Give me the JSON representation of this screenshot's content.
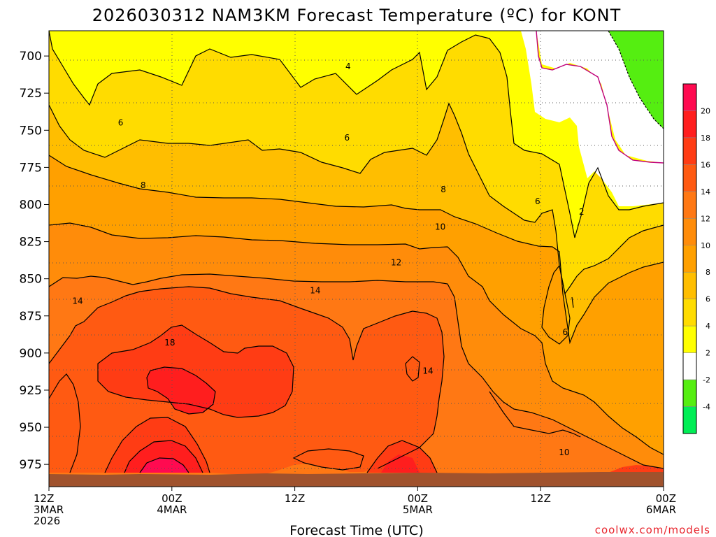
{
  "chart_data": {
    "type": "heatmap",
    "title": "2026030312 NAM3KM Forecast Temperature (ºC) for KONT",
    "xlabel": "Forecast Time (UTC)",
    "ylabel": "",
    "x_ticks": [
      {
        "hour": 0,
        "lines": [
          "12Z",
          "3MAR",
          "2026"
        ]
      },
      {
        "hour": 12,
        "lines": [
          "00Z",
          "4MAR"
        ]
      },
      {
        "hour": 24,
        "lines": [
          "12Z"
        ]
      },
      {
        "hour": 36,
        "lines": [
          "00Z",
          "5MAR"
        ]
      },
      {
        "hour": 48,
        "lines": [
          "12Z"
        ]
      },
      {
        "hour": 60,
        "lines": [
          "00Z",
          "6MAR"
        ]
      }
    ],
    "xlim": [
      0,
      60
    ],
    "y_ticks": [
      700,
      725,
      750,
      775,
      800,
      825,
      850,
      875,
      900,
      925,
      950,
      975
    ],
    "ylim": [
      683,
      990
    ],
    "ground_level_hpa": 978,
    "colorbar": {
      "ticks": [
        20,
        18,
        16,
        14,
        12,
        10,
        8,
        6,
        4,
        2,
        -2,
        -4
      ],
      "bands": [
        {
          "from": 20,
          "to": 22,
          "color": "#ff0a50"
        },
        {
          "from": 18,
          "to": 20,
          "color": "#ff1e1e"
        },
        {
          "from": 16,
          "to": 18,
          "color": "#ff3c14"
        },
        {
          "from": 14,
          "to": 16,
          "color": "#ff5a12"
        },
        {
          "from": 12,
          "to": 14,
          "color": "#ff7814"
        },
        {
          "from": 10,
          "to": 12,
          "color": "#ff8c0a"
        },
        {
          "from": 8,
          "to": 10,
          "color": "#ffa000"
        },
        {
          "from": 6,
          "to": 8,
          "color": "#ffbe00"
        },
        {
          "from": 4,
          "to": 6,
          "color": "#ffdc00"
        },
        {
          "from": 2,
          "to": 4,
          "color": "#ffff00"
        },
        {
          "from": -2,
          "to": 2,
          "color": "#ffffff"
        },
        {
          "from": -4,
          "to": -2,
          "color": "#55ee11"
        },
        {
          "from": -6,
          "to": -4,
          "color": "#00ee55"
        }
      ]
    },
    "contour_labels": [
      {
        "value": "4",
        "hour": 29.2,
        "hpa": 707
      },
      {
        "value": "6",
        "hour": 7.0,
        "hpa": 745
      },
      {
        "value": "6",
        "hour": 29.1,
        "hpa": 755
      },
      {
        "value": "8",
        "hour": 9.2,
        "hpa": 787
      },
      {
        "value": "8",
        "hour": 38.5,
        "hpa": 790
      },
      {
        "value": "6",
        "hour": 47.7,
        "hpa": 798
      },
      {
        "value": "2",
        "hour": 52.0,
        "hpa": 805
      },
      {
        "value": "10",
        "hour": 38.2,
        "hpa": 815
      },
      {
        "value": "12",
        "hour": 33.9,
        "hpa": 839
      },
      {
        "value": "14",
        "hour": 2.8,
        "hpa": 865
      },
      {
        "value": "14",
        "hour": 26.0,
        "hpa": 858
      },
      {
        "value": "18",
        "hour": 11.8,
        "hpa": 893
      },
      {
        "value": "14",
        "hour": 37.0,
        "hpa": 912
      },
      {
        "value": "6",
        "hour": 50.4,
        "hpa": 886
      },
      {
        "value": "10",
        "hour": 50.3,
        "hpa": 967
      }
    ],
    "credit": "coolwx.com/models"
  }
}
